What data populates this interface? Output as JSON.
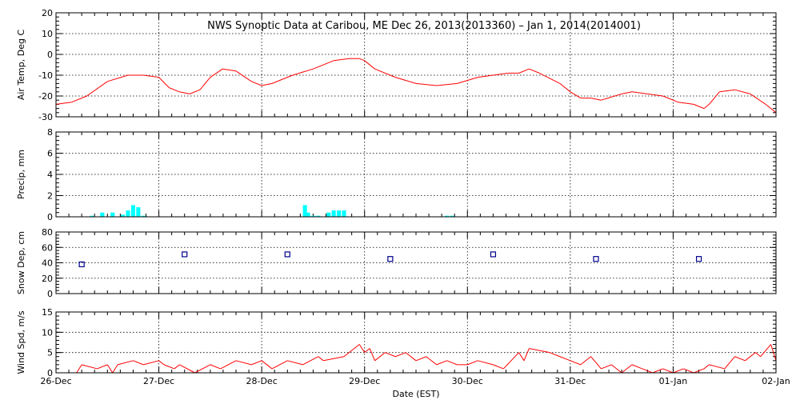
{
  "title": "NWS Synoptic Data at Caribou, ME   Dec 26, 2013(2013360) – Jan  1, 2014(2014001)",
  "xlabel": "Date (EST)",
  "colors": {
    "temp": "#ff0000",
    "precip": "#00ffff",
    "snow": "#00008b",
    "wind": "#ff0000",
    "axis": "#000000"
  },
  "chart_data": [
    {
      "type": "line",
      "ylabel": "Air Temp, Deg C",
      "xlim": [
        0,
        7
      ],
      "ylim": [
        -30,
        20
      ],
      "yticks": [
        -30,
        -20,
        -10,
        0,
        10,
        20
      ],
      "grid": true,
      "series": [
        {
          "x": [
            0,
            0.15,
            0.3,
            0.5,
            0.7,
            0.85,
            1.0,
            1.1,
            1.2,
            1.3,
            1.4,
            1.5,
            1.62,
            1.75,
            1.9,
            2.0,
            2.1,
            2.3,
            2.5,
            2.7,
            2.85,
            2.95,
            3.0,
            3.1,
            3.3,
            3.5,
            3.7,
            3.9,
            4.1,
            4.25,
            4.4,
            4.5,
            4.6,
            4.7,
            4.9,
            5.0,
            5.1,
            5.2,
            5.3,
            5.5,
            5.6,
            5.75,
            5.9,
            6.05,
            6.2,
            6.3,
            6.35,
            6.45,
            6.6,
            6.75,
            6.9,
            7.0
          ],
          "y": [
            -24,
            -23,
            -20,
            -13,
            -10,
            -10,
            -11,
            -16,
            -18,
            -19,
            -17,
            -11,
            -7,
            -8,
            -13,
            -15,
            -14,
            -10,
            -7,
            -3,
            -2,
            -2,
            -3,
            -7,
            -11,
            -14,
            -15,
            -14,
            -11,
            -10,
            -9,
            -9,
            -7,
            -9,
            -14,
            -18,
            -21,
            -21,
            -22,
            -19,
            -18,
            -19,
            -20,
            -23,
            -24,
            -26,
            -24,
            -18,
            -17,
            -19,
            -24,
            -28
          ]
        }
      ]
    },
    {
      "type": "bar",
      "ylabel": "Precip, mm",
      "xlim": [
        0,
        7
      ],
      "ylim": [
        0,
        8
      ],
      "yticks": [
        0,
        2,
        4,
        6,
        8
      ],
      "grid": true,
      "bar_width": 0.04,
      "series": [
        {
          "x": [
            0.35,
            0.45,
            0.55,
            0.65,
            0.7,
            0.75,
            0.8,
            0.85,
            2.42,
            2.45,
            2.5,
            2.55,
            2.65,
            2.7,
            2.75,
            2.8,
            3.8,
            3.85
          ],
          "y": [
            0.1,
            0.4,
            0.4,
            0.2,
            0.6,
            1.1,
            0.9,
            0.1,
            1.1,
            0.4,
            0.1,
            0.1,
            0.4,
            0.6,
            0.6,
            0.6,
            0.1,
            0.1
          ]
        }
      ]
    },
    {
      "type": "scatter",
      "ylabel": "Snow Dep, cm",
      "xlim": [
        0,
        7
      ],
      "ylim": [
        0,
        80
      ],
      "yticks": [
        0,
        20,
        40,
        60,
        80
      ],
      "grid": true,
      "series": [
        {
          "x": [
            0.25,
            1.25,
            2.25,
            3.25,
            4.25,
            5.25,
            6.25
          ],
          "y": [
            38,
            51,
            51,
            45,
            51,
            45,
            45
          ]
        }
      ]
    },
    {
      "type": "line",
      "ylabel": "Wind Spd, m/s",
      "xlim": [
        0,
        7
      ],
      "ylim": [
        0,
        15
      ],
      "yticks": [
        0,
        5,
        10,
        15
      ],
      "grid": true,
      "series": [
        {
          "x": [
            0,
            0.2,
            0.25,
            0.4,
            0.5,
            0.55,
            0.6,
            0.75,
            0.85,
            1.0,
            1.05,
            1.15,
            1.2,
            1.35,
            1.5,
            1.6,
            1.75,
            1.9,
            2.0,
            2.1,
            2.25,
            2.4,
            2.55,
            2.6,
            2.8,
            2.95,
            3.0,
            3.05,
            3.1,
            3.2,
            3.3,
            3.4,
            3.5,
            3.6,
            3.7,
            3.8,
            3.9,
            4.0,
            4.1,
            4.25,
            4.35,
            4.5,
            4.55,
            4.6,
            4.8,
            4.9,
            5.0,
            5.1,
            5.2,
            5.3,
            5.4,
            5.5,
            5.6,
            5.7,
            5.8,
            5.9,
            6.0,
            6.1,
            6.2,
            6.3,
            6.35,
            6.5,
            6.6,
            6.7,
            6.8,
            6.85,
            6.95,
            7.0
          ],
          "y": [
            0,
            0,
            2,
            1,
            2,
            0,
            2,
            3,
            2,
            3,
            2,
            1,
            2,
            0,
            2,
            1,
            3,
            2,
            3,
            1,
            3,
            2,
            4,
            3,
            4,
            7,
            5,
            6,
            3,
            5,
            4,
            5,
            3,
            4,
            2,
            3,
            2,
            2,
            3,
            2,
            1,
            5,
            3,
            6,
            5,
            4,
            3,
            2,
            4,
            1,
            2,
            0,
            2,
            1,
            0,
            1,
            0,
            1,
            0,
            1,
            2,
            1,
            4,
            3,
            5,
            4,
            7,
            3
          ]
        }
      ]
    }
  ],
  "xticks": [
    "26-Dec",
    "27-Dec",
    "28-Dec",
    "29-Dec",
    "30-Dec",
    "31-Dec",
    "01-Jan",
    "02-Jan"
  ]
}
